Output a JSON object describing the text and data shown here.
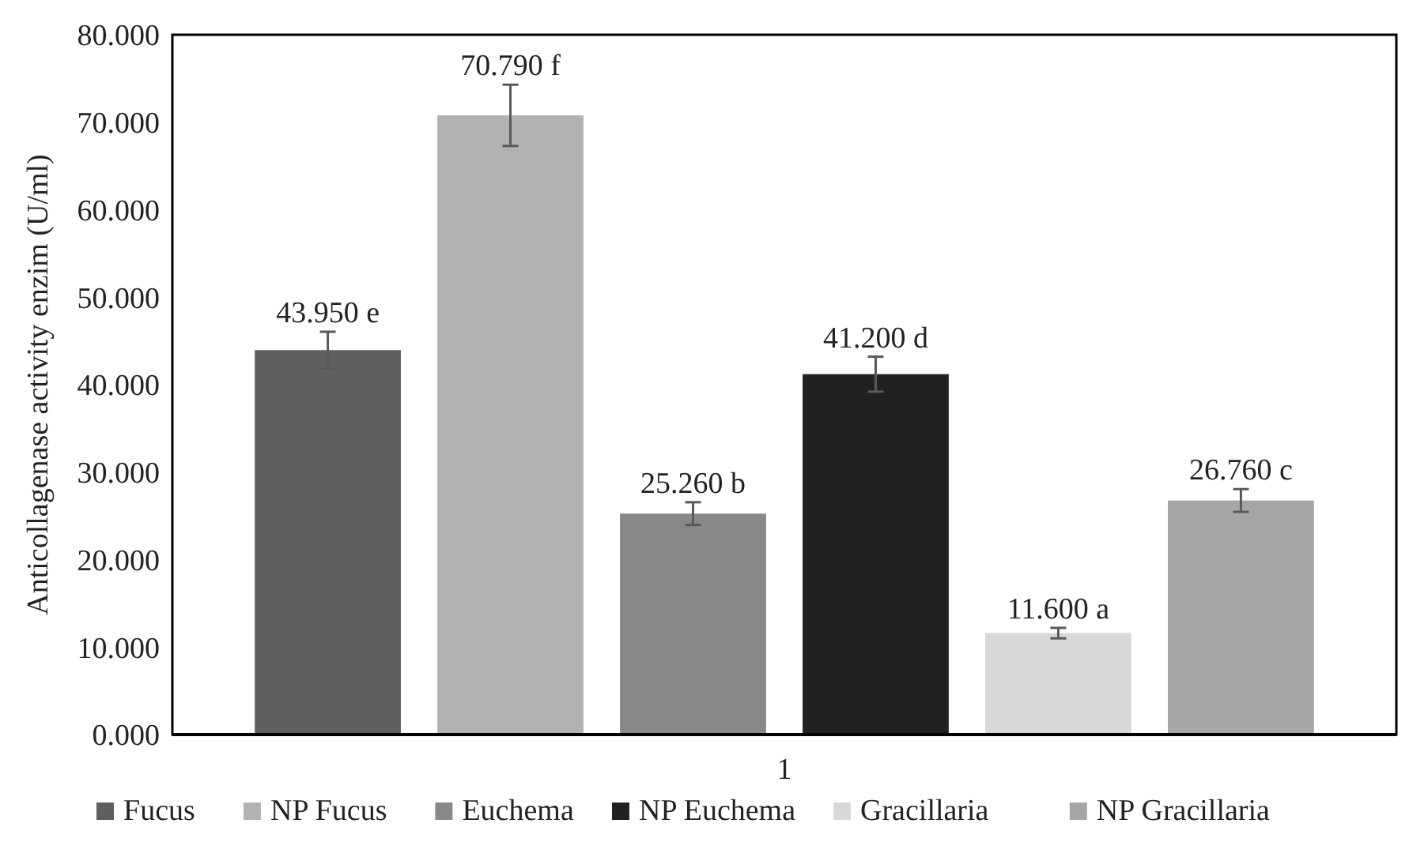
{
  "chart_data": {
    "type": "bar",
    "ylabel": "Anticollagenase activity enzim   (U/ml)",
    "categories": [
      "1"
    ],
    "ylim": [
      0,
      80
    ],
    "yticks": [
      {
        "value": 0,
        "label": "0.000"
      },
      {
        "value": 10,
        "label": "10.000"
      },
      {
        "value": 20,
        "label": "20.000"
      },
      {
        "value": 30,
        "label": "30.000"
      },
      {
        "value": 40,
        "label": "40.000"
      },
      {
        "value": 50,
        "label": "50.000"
      },
      {
        "value": 60,
        "label": "60.000"
      },
      {
        "value": 70,
        "label": "70.000"
      },
      {
        "value": 80,
        "label": "80.000"
      }
    ],
    "grid": false,
    "legend": "bottom",
    "series": [
      {
        "name": "Fucus",
        "color": "#5f5f5f",
        "values": [
          43.95
        ],
        "errors": [
          2.1
        ],
        "value_labels": [
          "43.950 e"
        ]
      },
      {
        "name": "NP Fucus",
        "color": "#b2b2b2",
        "values": [
          70.79
        ],
        "errors": [
          3.5
        ],
        "value_labels": [
          "70.790 f"
        ]
      },
      {
        "name": "Euchema",
        "color": "#888888",
        "values": [
          25.26
        ],
        "errors": [
          1.3
        ],
        "value_labels": [
          "25.260 b"
        ]
      },
      {
        "name": "NP Euchema",
        "color": "#212121",
        "values": [
          41.2
        ],
        "errors": [
          2
        ],
        "value_labels": [
          "41.200 d"
        ]
      },
      {
        "name": "Gracillaria",
        "color": "#d9d9d9",
        "values": [
          11.6
        ],
        "errors": [
          0.6
        ],
        "value_labels": [
          "11.600 a"
        ]
      },
      {
        "name": "NP Gracillaria",
        "color": "#a6a6a6",
        "values": [
          26.76
        ],
        "errors": [
          1.3
        ],
        "value_labels": [
          "26.760 c"
        ]
      }
    ]
  }
}
